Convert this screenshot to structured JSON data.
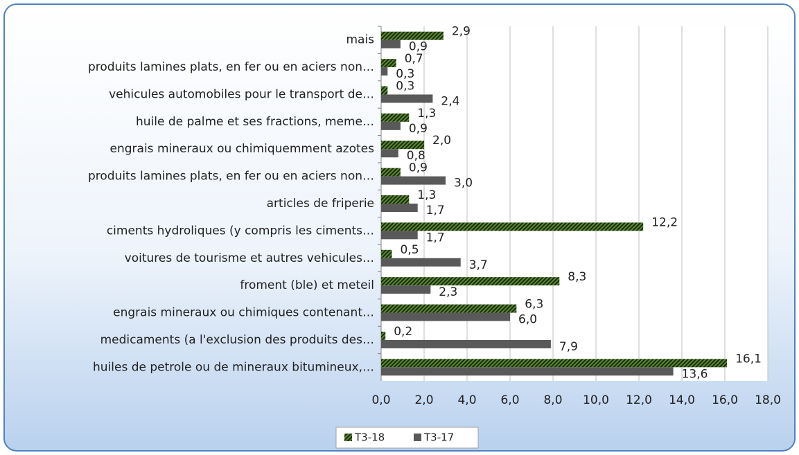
{
  "chart_data": {
    "type": "bar",
    "orientation": "horizontal",
    "categories": [
      "mais",
      "produits lamines plats, en fer ou en aciers non…",
      "vehicules automobiles pour le transport de…",
      "huile de palme et ses fractions, meme…",
      "engrais mineraux ou chimiquemment azotes",
      "produits lamines plats, en fer ou en aciers non…",
      "articles de friperie",
      "ciments hydroliques (y compris les ciments…",
      "voitures de tourisme et autres vehicules…",
      "froment (ble) et meteil",
      "engrais mineraux ou chimiques contenant…",
      "medicaments (a l'exclusion des produits des…",
      "huiles de petrole ou de mineraux bitumineux,…"
    ],
    "series": [
      {
        "name": "T3-18",
        "color": "#5a8a2e",
        "pattern": "hatch",
        "values": [
          2.9,
          0.7,
          0.3,
          1.3,
          2.0,
          0.9,
          1.3,
          12.2,
          0.5,
          8.3,
          6.3,
          0.2,
          16.1
        ],
        "value_labels": [
          "2,9",
          "0,7",
          "0,3",
          "1,3",
          "2,0",
          "0,9",
          "1,3",
          "12,2",
          "0,5",
          "8,3",
          "6,3",
          "0,2",
          "16,1"
        ]
      },
      {
        "name": "T3-17",
        "color": "#595959",
        "values": [
          0.9,
          0.3,
          2.4,
          0.9,
          0.8,
          3.0,
          1.7,
          1.7,
          3.7,
          2.3,
          6.0,
          7.9,
          13.6
        ],
        "value_labels": [
          "0,9",
          "0,3",
          "2,4",
          "0,9",
          "0,8",
          "3,0",
          "1,7",
          "1,7",
          "3,7",
          "2,3",
          "6,0",
          "7,9",
          "13,6"
        ]
      }
    ],
    "xlim": [
      0,
      18
    ],
    "xticks": [
      {
        "value": 0,
        "label": "0,0"
      },
      {
        "value": 2,
        "label": "2,0"
      },
      {
        "value": 4,
        "label": "4,0"
      },
      {
        "value": 6,
        "label": "6,0"
      },
      {
        "value": 8,
        "label": "8,0"
      },
      {
        "value": 10,
        "label": "10,0"
      },
      {
        "value": 12,
        "label": "12,0"
      },
      {
        "value": 14,
        "label": "14,0"
      },
      {
        "value": 16,
        "label": "16,0"
      },
      {
        "value": 18,
        "label": "18,0"
      }
    ],
    "grid": true,
    "legend": "bottom"
  }
}
